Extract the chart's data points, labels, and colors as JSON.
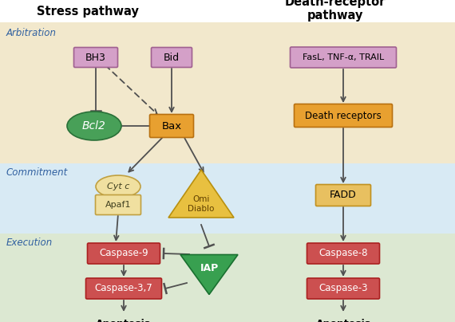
{
  "fig_width": 5.7,
  "fig_height": 4.04,
  "section_colors": {
    "arbitration": "#f2e8cc",
    "commitment": "#d8eaf4",
    "execution": "#dce8d2"
  },
  "title_left": "Stress pathway",
  "title_right": "Death-receptor\npathway",
  "section_labels": [
    "Arbitration",
    "Commitment",
    "Execution"
  ],
  "pink_box_color": "#d4a0c8",
  "pink_box_edge": "#a06090",
  "orange_box_color": "#e8a030",
  "orange_box_edge": "#b87010",
  "orange_box2_color": "#e8c060",
  "orange_box2_edge": "#c09020",
  "red_box_color": "#cc5050",
  "red_box_edge": "#aa2020",
  "green_ellipse_color": "#48a058",
  "green_ellipse_edge": "#2a7038",
  "yellow_ellipse_color": "#f0e0a0",
  "yellow_ellipse_edge": "#c0a040",
  "yellow_triangle_color": "#e8c040",
  "yellow_triangle_edge": "#b89010",
  "green_inv_triangle_color": "#38a050",
  "green_inv_triangle_edge": "#1a7030",
  "arrow_color": "#505050"
}
